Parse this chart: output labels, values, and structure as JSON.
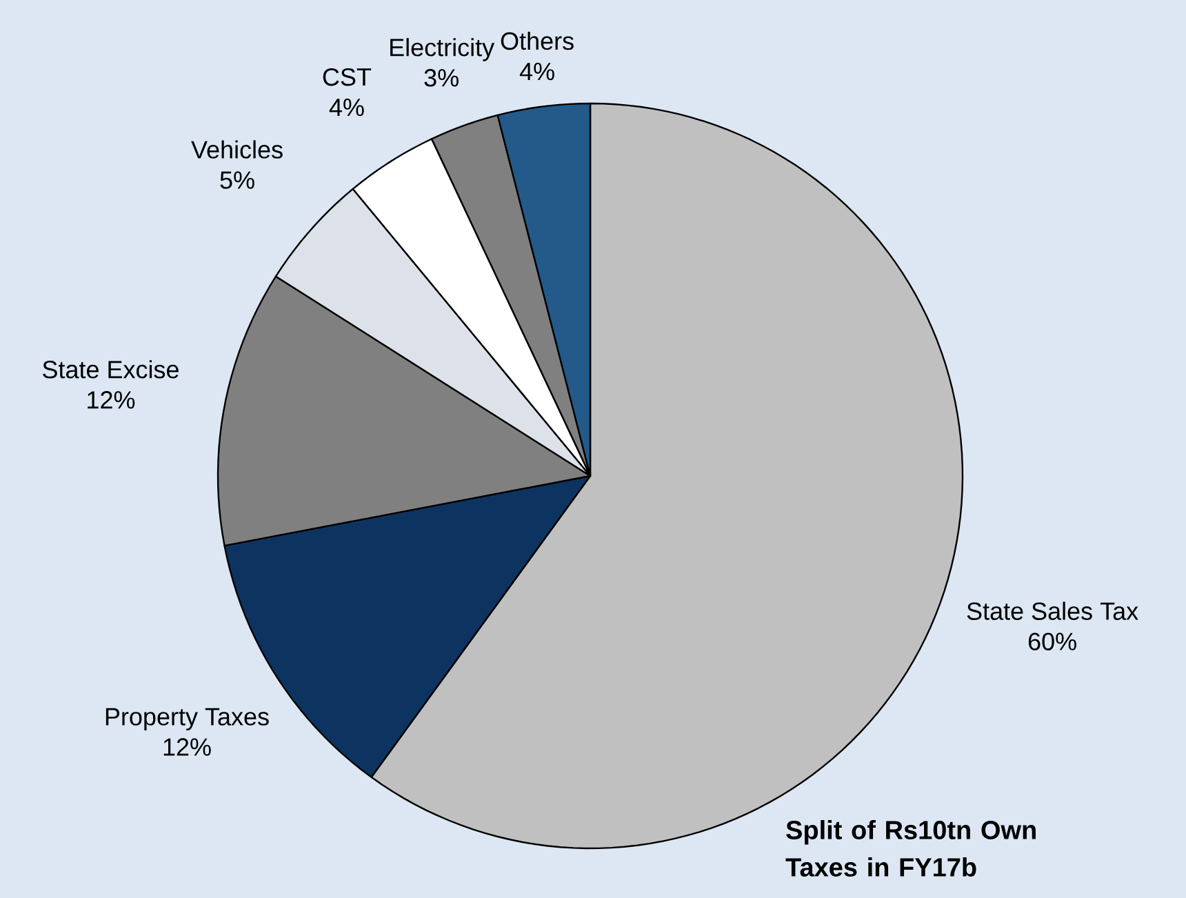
{
  "chart_data": {
    "type": "pie",
    "title": "Split of Rs10tn Own Taxes in FY17b",
    "categories": [
      "State Sales Tax",
      "Property Taxes",
      "State Excise",
      "Vehicles",
      "CST",
      "Electricity",
      "Others"
    ],
    "values": [
      60,
      12,
      12,
      5,
      4,
      3,
      4
    ],
    "value_labels": [
      "60%",
      "12%",
      "12%",
      "5%",
      "4%",
      "3%",
      "4%"
    ],
    "colors": [
      "#c0c0c0",
      "#0d3461",
      "#808080",
      "#dde2ea",
      "#ffffff",
      "#808080",
      "#245a8a"
    ]
  }
}
